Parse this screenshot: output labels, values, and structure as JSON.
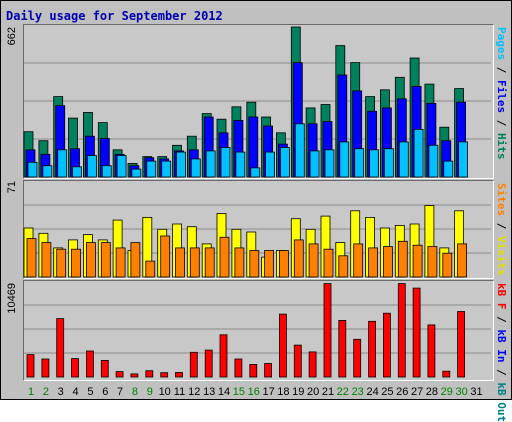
{
  "title": "Daily usage for September 2012",
  "chart_data": {
    "type": "bar",
    "title": "Daily usage for September 2012",
    "categories": [
      "1",
      "2",
      "3",
      "4",
      "5",
      "6",
      "7",
      "8",
      "9",
      "10",
      "11",
      "12",
      "13",
      "14",
      "15",
      "16",
      "17",
      "18",
      "19",
      "20",
      "21",
      "22",
      "23",
      "24",
      "25",
      "26",
      "27",
      "28",
      "29",
      "30",
      "31"
    ],
    "weekend_days": [
      "1",
      "2",
      "8",
      "9",
      "15",
      "16",
      "22",
      "23",
      "29",
      "30"
    ],
    "panels": [
      {
        "max_label": "662",
        "ymax": 662,
        "series": [
          {
            "name": "Hits",
            "color": "#00805c",
            "values": [
              200,
              160,
              355,
              260,
              285,
              240,
              120,
              60,
              90,
              90,
              140,
              180,
              280,
              255,
              310,
              330,
              265,
              195,
              662,
              305,
              320,
              580,
              505,
              355,
              385,
              440,
              525,
              410,
              220,
              390,
              0
            ]
          },
          {
            "name": "Files",
            "color": "#0000ff",
            "values": [
              120,
              100,
              315,
              125,
              180,
              170,
              100,
              50,
              85,
              80,
              115,
              120,
              265,
              195,
              250,
              265,
              225,
              145,
              505,
              235,
              245,
              450,
              380,
              290,
              305,
              345,
              400,
              325,
              160,
              330,
              0
            ]
          },
          {
            "name": "Pages",
            "color": "#00c0ff",
            "values": [
              65,
              50,
              120,
              45,
              95,
              50,
              95,
              35,
              70,
              70,
              110,
              80,
              115,
              130,
              110,
              40,
              110,
              130,
              235,
              115,
              120,
              155,
              125,
              120,
              125,
              155,
              210,
              140,
              70,
              155,
              0
            ]
          }
        ]
      },
      {
        "max_label": "71",
        "ymax": 71,
        "series": [
          {
            "name": "Visits",
            "color": "#ffff00",
            "values": [
              37,
              33,
              22,
              28,
              32,
              28,
              43,
              20,
              45,
              36,
              40,
              38,
              25,
              48,
              36,
              34,
              15,
              20,
              44,
              36,
              46,
              26,
              50,
              45,
              37,
              39,
              40,
              54,
              22,
              50,
              0
            ]
          },
          {
            "name": "Sites",
            "color": "#ff8000",
            "values": [
              29,
              26,
              21,
              21,
              26,
              26,
              22,
              26,
              12,
              31,
              22,
              22,
              22,
              30,
              22,
              20,
              20,
              20,
              28,
              25,
              21,
              16,
              25,
              22,
              23,
              27,
              24,
              23,
              18,
              25,
              0
            ]
          }
        ]
      },
      {
        "max_label": "10469",
        "ymax": 10469,
        "series": [
          {
            "name": "KB F",
            "color": "#ff0000",
            "values": [
              2500,
              2000,
              6500,
              2050,
              2900,
              1850,
              600,
              350,
              700,
              480,
              500,
              2750,
              3000,
              4700,
              2000,
              1400,
              1500,
              7000,
              3550,
              2800,
              10400,
              6300,
              4200,
              6200,
              7100,
              10400,
              9900,
              5800,
              650,
              7300,
              0
            ]
          },
          {
            "name": "KB In",
            "color": "#0000ff",
            "values": []
          },
          {
            "name": "KB Out",
            "color": "#008080",
            "values": []
          }
        ]
      }
    ],
    "right_labels": [
      {
        "parts": [
          {
            "text": "Pages",
            "color": "#00c0ff"
          },
          {
            "text": " / ",
            "color": "#000000"
          },
          {
            "text": "Files",
            "color": "#0000ff"
          },
          {
            "text": " / ",
            "color": "#000000"
          },
          {
            "text": "Hits",
            "color": "#00805c"
          }
        ]
      },
      {
        "parts": [
          {
            "text": "Sites",
            "color": "#ff8000"
          },
          {
            "text": " / ",
            "color": "#000000"
          },
          {
            "text": "Visits",
            "color": "#e0e000"
          }
        ]
      },
      {
        "parts": [
          {
            "text": "kB F",
            "color": "#ff0000"
          },
          {
            "text": " / ",
            "color": "#000000"
          },
          {
            "text": "kB In",
            "color": "#0000ff"
          },
          {
            "text": " / ",
            "color": "#000000"
          },
          {
            "text": "kB Out",
            "color": "#008080"
          }
        ]
      }
    ],
    "colors": {
      "background": "#c0c0c0",
      "title": "#0000b0",
      "weekday": "#000000",
      "weekend": "#008000"
    }
  }
}
